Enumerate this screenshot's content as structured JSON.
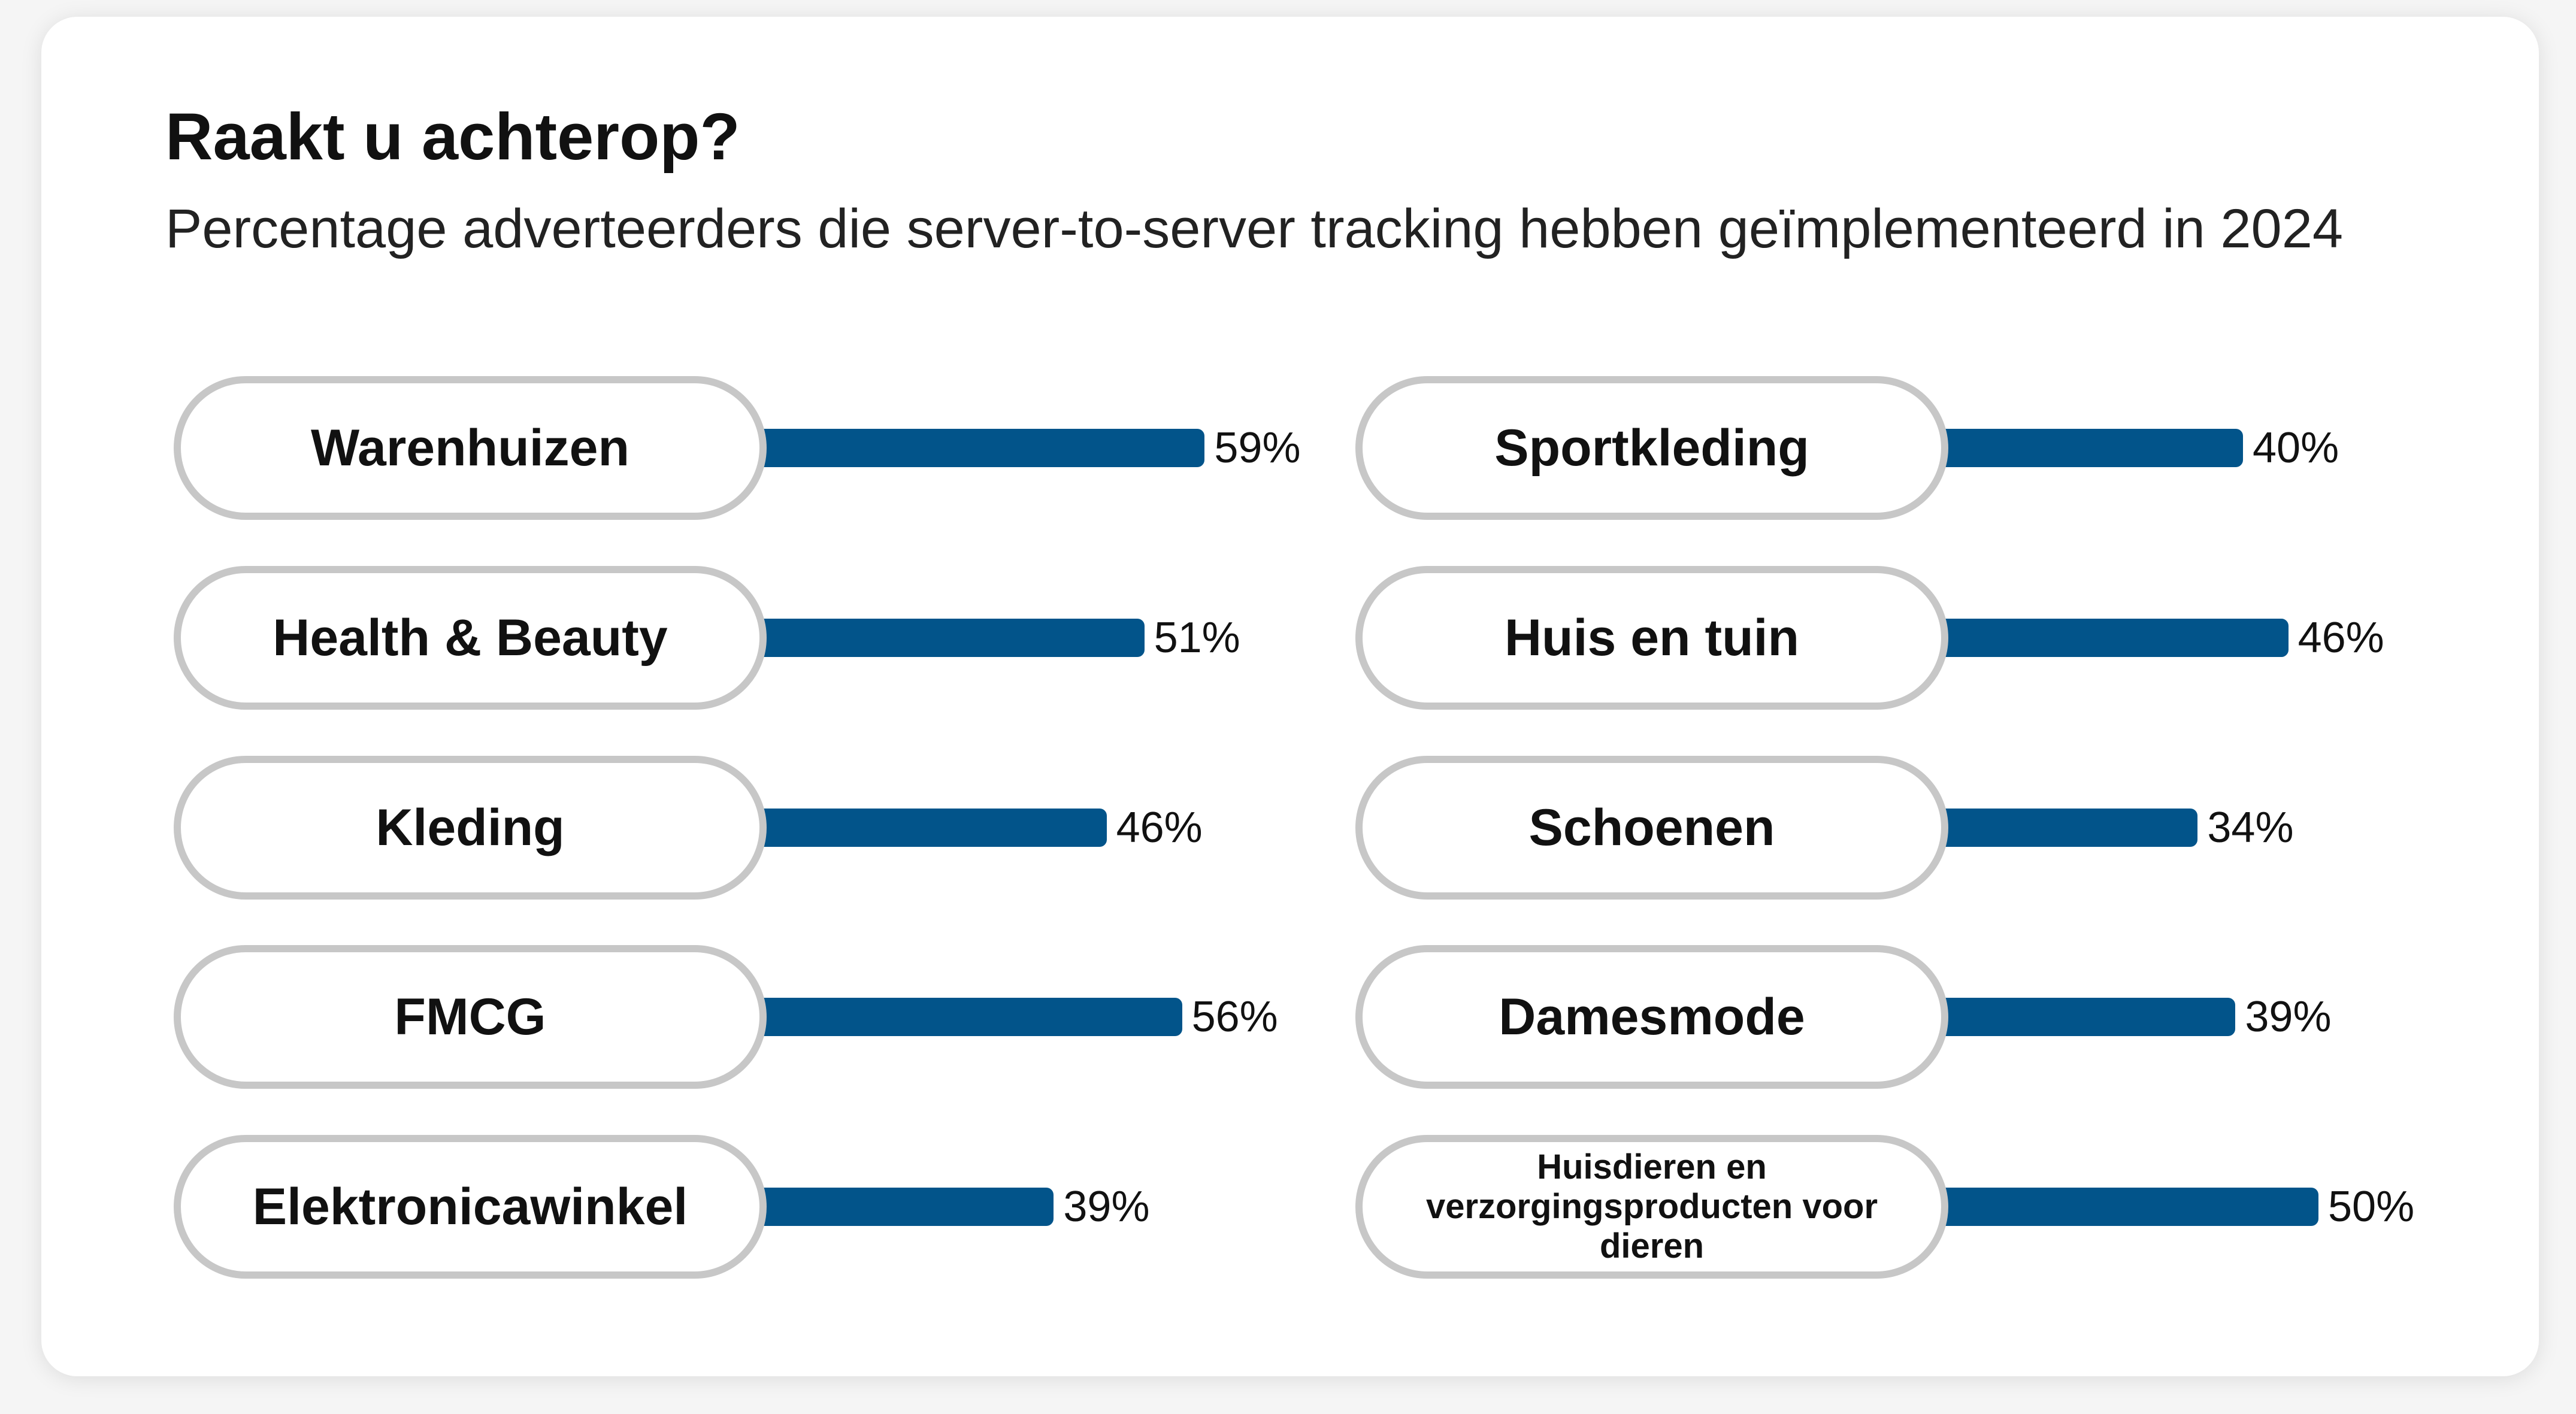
{
  "colors": {
    "bar": "#02548a",
    "pill_border": "#c7c7c7",
    "card": "#ffffff"
  },
  "chart_data": {
    "type": "bar",
    "orientation": "horizontal",
    "title": "Raakt u achterop?",
    "subtitle": "Percentage adverteerders die server-to-server tracking hebben geïmplementeerd in 2024",
    "unit": "%",
    "layout": "two columns",
    "categories": [
      "Warenhuizen",
      "Health & Beauty",
      "Kleding",
      "FMCG",
      "Elektronicawinkel",
      "Sportkleding",
      "Huis en tuin",
      "Schoenen",
      "Damesmode",
      "Huisdieren en verzorgingsproducten voor dieren"
    ],
    "values": [
      59,
      51,
      46,
      56,
      39,
      40,
      46,
      34,
      39,
      50
    ],
    "value_labels": [
      "59%",
      "51%",
      "46%",
      "56%",
      "39%",
      "40%",
      "46%",
      "34%",
      "39%",
      "50%"
    ]
  }
}
